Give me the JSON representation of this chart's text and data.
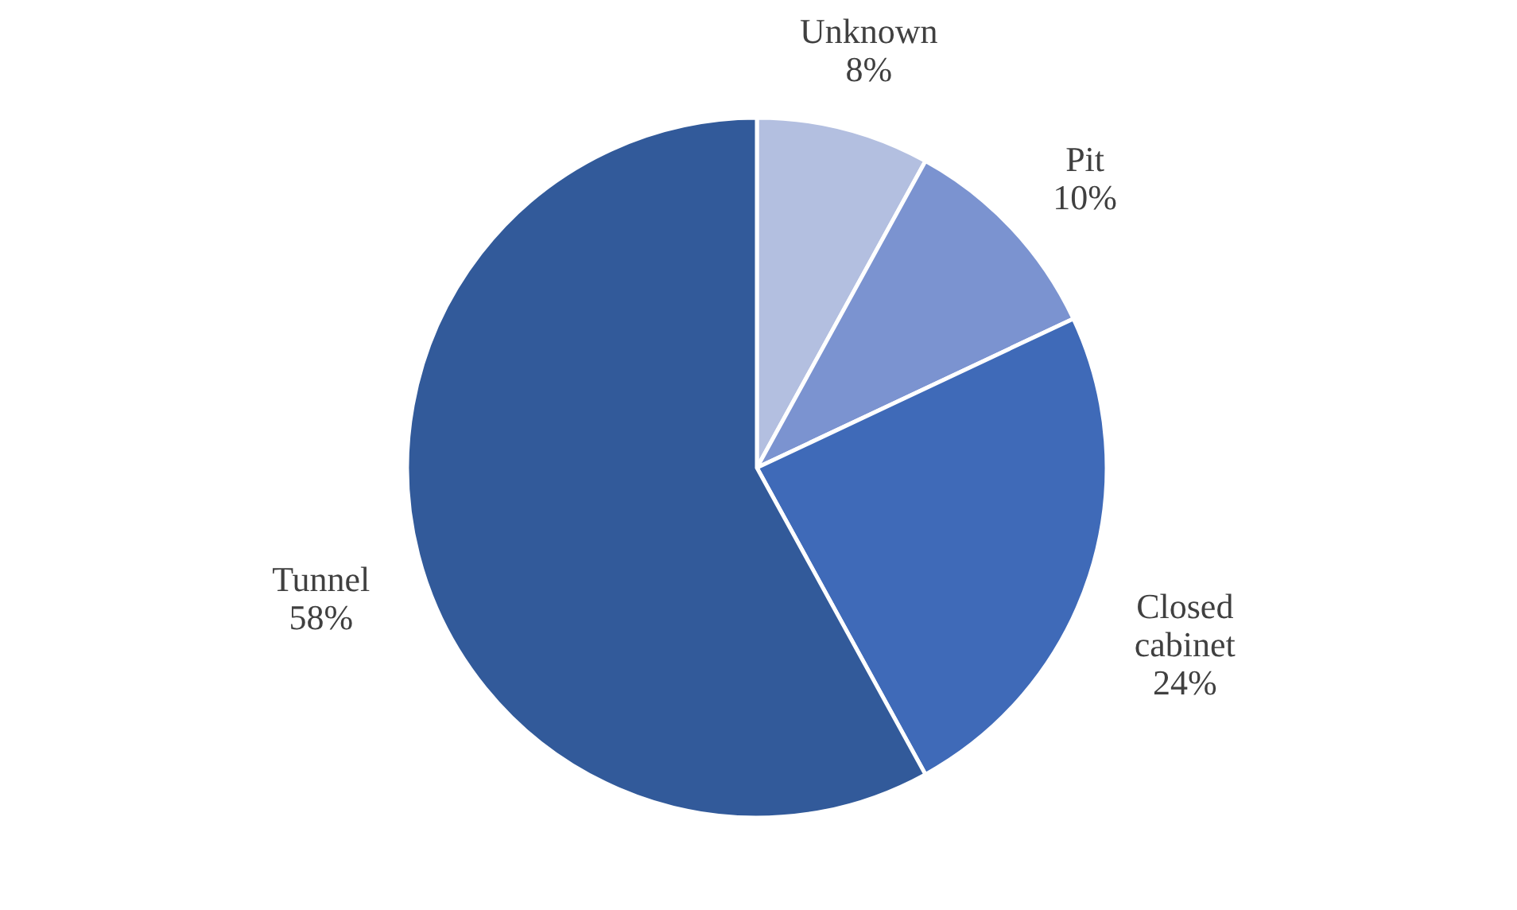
{
  "chart_data": {
    "type": "pie",
    "categories": [
      "Unknown",
      "Pit",
      "Closed cabinet",
      "Tunnel"
    ],
    "values": [
      8,
      10,
      24,
      58
    ],
    "value_labels": [
      "8%",
      "10%",
      "24%",
      "58%"
    ],
    "colors": [
      "#b3bfe0",
      "#7b93d0",
      "#3f6ab8",
      "#325a9a"
    ],
    "legend": false
  }
}
